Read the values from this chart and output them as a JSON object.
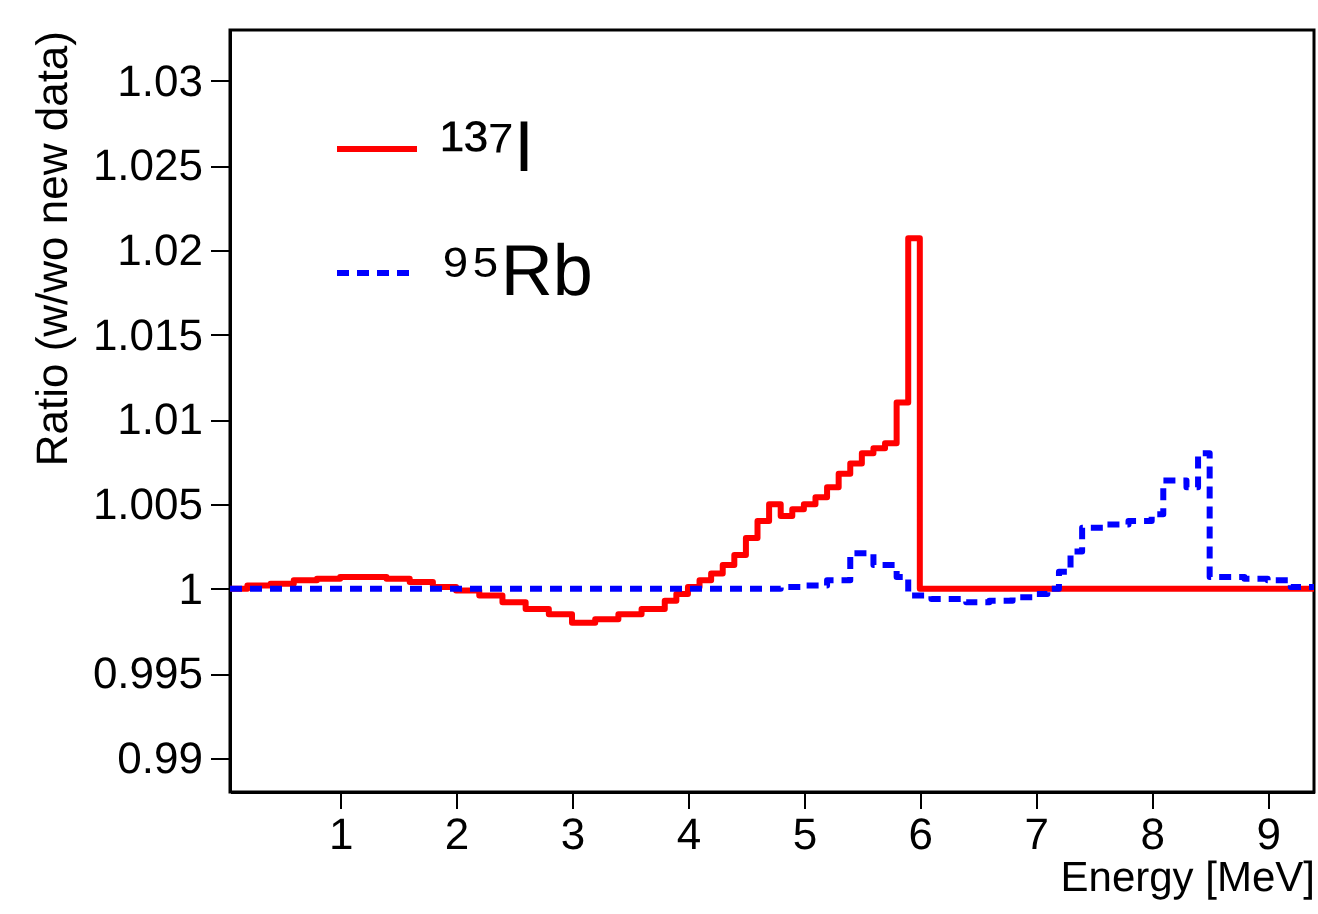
{
  "chart_data": {
    "type": "step",
    "xlabel": "Energy [MeV]",
    "ylabel": "Ratio (w/wo new data)",
    "xlim": [
      0.05,
      9.4
    ],
    "xticks": [
      1,
      2,
      3,
      4,
      5,
      6,
      7,
      8,
      9
    ],
    "ylim": [
      0.988,
      1.033
    ],
    "yticks": [
      0.99,
      0.995,
      1,
      1.005,
      1.01,
      1.015,
      1.02,
      1.025,
      1.03
    ],
    "legend": "top left",
    "grid": false,
    "marker": "none",
    "series": [
      {
        "name": "¹³⁷I",
        "color": "#ff0000",
        "line_style": "solid",
        "x": [
          0.05,
          0.2,
          0.4,
          0.6,
          0.8,
          1.0,
          1.2,
          1.4,
          1.6,
          1.8,
          2.0,
          2.2,
          2.4,
          2.6,
          2.8,
          3.0,
          3.2,
          3.4,
          3.6,
          3.8,
          3.9,
          4.0,
          4.1,
          4.2,
          4.3,
          4.4,
          4.5,
          4.6,
          4.7,
          4.8,
          4.9,
          5.0,
          5.1,
          5.2,
          5.3,
          5.4,
          5.5,
          5.6,
          5.7,
          5.8,
          5.9,
          6.0,
          9.4
        ],
        "values": [
          1.0,
          1.0002,
          1.0003,
          1.0005,
          1.0006,
          1.0007,
          1.0007,
          1.0006,
          1.0004,
          1.0001,
          0.9999,
          0.9996,
          0.9992,
          0.9988,
          0.9985,
          0.998,
          0.9982,
          0.9985,
          0.9988,
          0.9993,
          0.9997,
          1.0001,
          1.0005,
          1.0009,
          1.0014,
          1.002,
          1.003,
          1.004,
          1.005,
          1.0043,
          1.0047,
          1.005,
          1.0054,
          1.006,
          1.0068,
          1.0074,
          1.008,
          1.0083,
          1.0086,
          1.011,
          1.0207,
          1.0,
          1.0
        ]
      },
      {
        "name": "⁹⁵Rb",
        "color": "#0000ff",
        "line_style": "dashed",
        "x": [
          0.05,
          4.6,
          4.8,
          5.0,
          5.2,
          5.4,
          5.6,
          5.8,
          5.9,
          6.1,
          6.4,
          6.6,
          6.8,
          7.0,
          7.1,
          7.2,
          7.3,
          7.4,
          7.6,
          7.8,
          8.0,
          8.1,
          8.3,
          8.4,
          8.5,
          8.8,
          9.0,
          9.2,
          9.4
        ],
        "values": [
          1.0,
          1.0,
          1.0001,
          1.0002,
          1.0005,
          1.0021,
          1.0014,
          1.0007,
          0.9996,
          0.9994,
          0.9992,
          0.9993,
          0.9995,
          0.9997,
          1.0,
          1.001,
          1.0022,
          1.0036,
          1.0038,
          1.004,
          1.0044,
          1.0064,
          1.006,
          1.008,
          1.0007,
          1.0006,
          1.0005,
          1.0001,
          1.0001
        ]
      }
    ]
  }
}
